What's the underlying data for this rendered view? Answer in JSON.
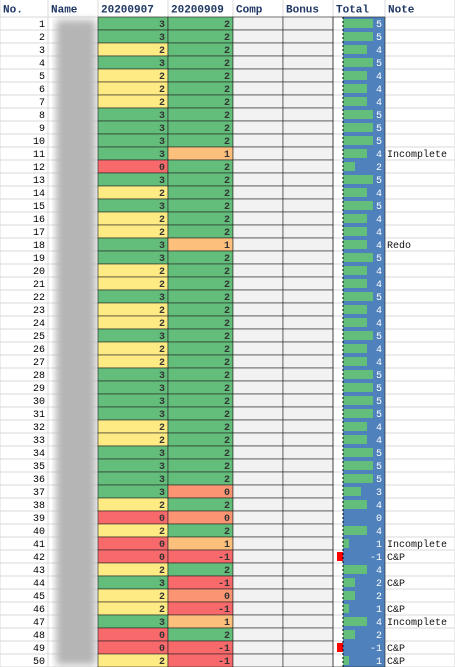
{
  "table": {
    "columns": [
      "No.",
      "Name",
      "20200907",
      "20200909",
      "Comp",
      "Bonus",
      "Total",
      "Note"
    ],
    "color_scale": [
      "#f8696b",
      "#ffeb84",
      "#63be7b"
    ],
    "bar_color": "#63be7b",
    "negative_bar_color": "#ff0000",
    "bar_background": "#4f81bd",
    "rows": [
      {
        "no": 1,
        "d1": 3,
        "d2": 2,
        "total": 5
      },
      {
        "no": 2,
        "d1": 3,
        "d2": 2,
        "total": 5
      },
      {
        "no": 3,
        "d1": 2,
        "d2": 2,
        "total": 4
      },
      {
        "no": 4,
        "d1": 3,
        "d2": 2,
        "total": 5
      },
      {
        "no": 5,
        "d1": 2,
        "d2": 2,
        "total": 4
      },
      {
        "no": 6,
        "d1": 2,
        "d2": 2,
        "total": 4
      },
      {
        "no": 7,
        "d1": 2,
        "d2": 2,
        "total": 4
      },
      {
        "no": 8,
        "d1": 3,
        "d2": 2,
        "total": 5
      },
      {
        "no": 9,
        "d1": 3,
        "d2": 2,
        "total": 5
      },
      {
        "no": 10,
        "d1": 3,
        "d2": 2,
        "total": 5
      },
      {
        "no": 11,
        "d1": 3,
        "d2": 1,
        "total": 4,
        "note": "Incomplete"
      },
      {
        "no": 12,
        "d1": 0,
        "d2": 2,
        "total": 2
      },
      {
        "no": 13,
        "d1": 3,
        "d2": 2,
        "total": 5
      },
      {
        "no": 14,
        "d1": 2,
        "d2": 2,
        "total": 4
      },
      {
        "no": 15,
        "d1": 3,
        "d2": 2,
        "total": 5
      },
      {
        "no": 16,
        "d1": 2,
        "d2": 2,
        "total": 4
      },
      {
        "no": 17,
        "d1": 2,
        "d2": 2,
        "total": 4
      },
      {
        "no": 18,
        "d1": 3,
        "d2": 1,
        "total": 4,
        "note": "Redo"
      },
      {
        "no": 19,
        "d1": 3,
        "d2": 2,
        "total": 5
      },
      {
        "no": 20,
        "d1": 2,
        "d2": 2,
        "total": 4
      },
      {
        "no": 21,
        "d1": 2,
        "d2": 2,
        "total": 4
      },
      {
        "no": 22,
        "d1": 3,
        "d2": 2,
        "total": 5
      },
      {
        "no": 23,
        "d1": 2,
        "d2": 2,
        "total": 4
      },
      {
        "no": 24,
        "d1": 2,
        "d2": 2,
        "total": 4
      },
      {
        "no": 25,
        "d1": 3,
        "d2": 2,
        "total": 5
      },
      {
        "no": 26,
        "d1": 2,
        "d2": 2,
        "total": 4
      },
      {
        "no": 27,
        "d1": 2,
        "d2": 2,
        "total": 4
      },
      {
        "no": 28,
        "d1": 3,
        "d2": 2,
        "total": 5
      },
      {
        "no": 29,
        "d1": 3,
        "d2": 2,
        "total": 5
      },
      {
        "no": 30,
        "d1": 3,
        "d2": 2,
        "total": 5
      },
      {
        "no": 31,
        "d1": 3,
        "d2": 2,
        "total": 5
      },
      {
        "no": 32,
        "d1": 2,
        "d2": 2,
        "total": 4
      },
      {
        "no": 33,
        "d1": 2,
        "d2": 2,
        "total": 4
      },
      {
        "no": 34,
        "d1": 3,
        "d2": 2,
        "total": 5
      },
      {
        "no": 35,
        "d1": 3,
        "d2": 2,
        "total": 5
      },
      {
        "no": 36,
        "d1": 3,
        "d2": 2,
        "total": 5
      },
      {
        "no": 37,
        "d1": 3,
        "d2": 0,
        "total": 3
      },
      {
        "no": 38,
        "d1": 2,
        "d2": 2,
        "total": 4
      },
      {
        "no": 39,
        "d1": 0,
        "d2": 0,
        "total": 0
      },
      {
        "no": 40,
        "d1": 2,
        "d2": 2,
        "total": 4
      },
      {
        "no": 41,
        "d1": 0,
        "d2": 1,
        "total": 1,
        "note": "Incomplete"
      },
      {
        "no": 42,
        "d1": 0,
        "d2": -1,
        "total": -1,
        "note": "C&P"
      },
      {
        "no": 43,
        "d1": 2,
        "d2": 2,
        "total": 4
      },
      {
        "no": 44,
        "d1": 3,
        "d2": -1,
        "total": 2,
        "note": "C&P"
      },
      {
        "no": 45,
        "d1": 2,
        "d2": 0,
        "total": 2
      },
      {
        "no": 46,
        "d1": 2,
        "d2": -1,
        "total": 1,
        "note": "C&P"
      },
      {
        "no": 47,
        "d1": 3,
        "d2": 1,
        "total": 4,
        "note": "Incomplete"
      },
      {
        "no": 48,
        "d1": 0,
        "d2": 2,
        "total": 2
      },
      {
        "no": 49,
        "d1": 0,
        "d2": -1,
        "total": -1,
        "note": "C&P"
      },
      {
        "no": 50,
        "d1": 2,
        "d2": -1,
        "total": 1,
        "note": "C&P"
      }
    ]
  }
}
